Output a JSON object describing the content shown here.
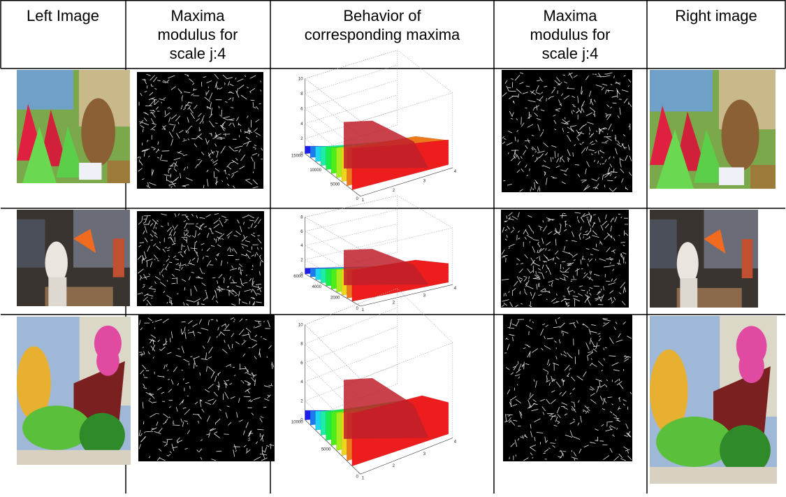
{
  "header": {
    "cells": [
      {
        "lines": [
          "Left Image"
        ]
      },
      {
        "lines": [
          "Maxima",
          "modulus for",
          "scale j:4"
        ]
      },
      {
        "lines": [
          "Behavior of",
          "corresponding maxima"
        ]
      },
      {
        "lines": [
          "Maxima",
          "modulus for",
          "scale j:4"
        ]
      },
      {
        "lines": [
          "Right image"
        ]
      }
    ]
  },
  "rows": [
    {
      "plot": {
        "z_ticks": [
          0,
          2,
          4,
          6,
          8,
          10
        ],
        "depth_ticks": [
          0,
          5000,
          10000,
          15000
        ],
        "x_ticks": [
          1,
          2,
          3,
          4
        ]
      }
    },
    {
      "plot": {
        "z_ticks": [
          0,
          2,
          4,
          6,
          8
        ],
        "depth_ticks": [
          0,
          2000,
          4000,
          6000
        ],
        "x_ticks": [
          1,
          2,
          3,
          4
        ]
      }
    },
    {
      "plot": {
        "z_ticks": [
          0,
          2,
          4,
          6,
          8,
          10
        ],
        "depth_ticks": [
          0,
          5000,
          10000
        ],
        "x_ticks": [
          1,
          2,
          3,
          4
        ]
      }
    }
  ]
}
